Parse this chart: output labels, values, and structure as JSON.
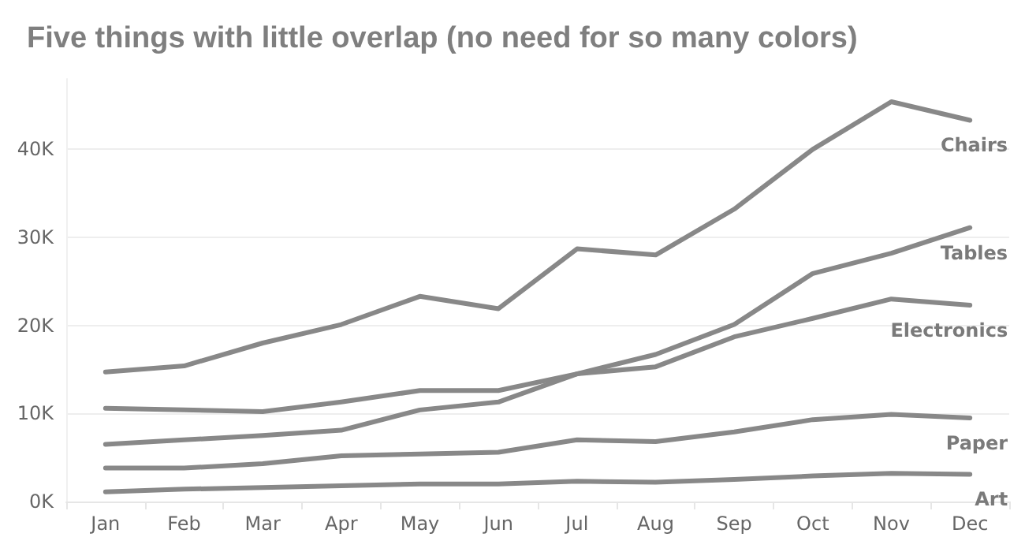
{
  "chart_data": {
    "type": "line",
    "title": "Five things with little overlap (no need for so many colors)",
    "categories": [
      "Jan",
      "Feb",
      "Mar",
      "Apr",
      "May",
      "Jun",
      "Jul",
      "Aug",
      "Sep",
      "Oct",
      "Nov",
      "Dec"
    ],
    "series": [
      {
        "name": "Chairs",
        "color": "#888888",
        "values": [
          14700,
          15400,
          18000,
          20100,
          23300,
          21900,
          28700,
          28000,
          33200,
          40000,
          45400,
          43300
        ]
      },
      {
        "name": "Tables",
        "color": "#888888",
        "values": [
          10600,
          10400,
          10200,
          11300,
          12600,
          12600,
          14500,
          16700,
          20100,
          25900,
          28200,
          31100
        ]
      },
      {
        "name": "Electronics",
        "color": "#888888",
        "values": [
          6500,
          7000,
          7500,
          8100,
          10400,
          11300,
          14500,
          15300,
          18700,
          20800,
          23000,
          22300
        ]
      },
      {
        "name": "Paper",
        "color": "#888888",
        "values": [
          3800,
          3800,
          4300,
          5200,
          5400,
          5600,
          7000,
          6800,
          7900,
          9300,
          9900,
          9500
        ]
      },
      {
        "name": "Art",
        "color": "#888888",
        "values": [
          1100,
          1400,
          1600,
          1800,
          2000,
          2000,
          2300,
          2200,
          2500,
          2900,
          3200,
          3100
        ]
      }
    ],
    "ylim": [
      0,
      48000
    ],
    "yticks": [
      {
        "value": 0,
        "label": "0K"
      },
      {
        "value": 10000,
        "label": "10K"
      },
      {
        "value": 20000,
        "label": "20K"
      },
      {
        "value": 30000,
        "label": "30K"
      },
      {
        "value": 40000,
        "label": "40K"
      }
    ],
    "grid": "y",
    "legend": false,
    "marker": "none",
    "line_style": "solid"
  }
}
